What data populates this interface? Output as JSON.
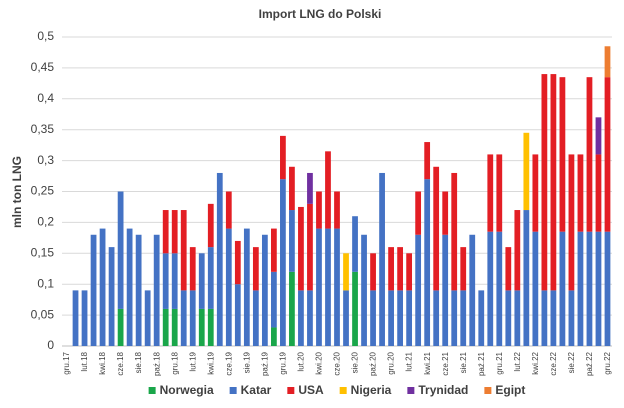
{
  "chart_data": {
    "type": "stacked-bar",
    "title": "Import LNG do Polski",
    "y_label": "mln ton LNG",
    "categories": [
      "gru.17",
      null,
      "lut.18",
      null,
      "kwi.18",
      null,
      "cze.18",
      null,
      "sie.18",
      null,
      "paź.18",
      null,
      "gru.18",
      null,
      "lut.19",
      null,
      "kwi.19",
      null,
      "cze.19",
      null,
      "sie.19",
      null,
      "paź.19",
      null,
      "gru.19",
      null,
      "lut.20",
      null,
      "kwi.20",
      null,
      "cze.20",
      null,
      "sie.20",
      null,
      "paź.20",
      null,
      "gru.20",
      null,
      "lut.21",
      null,
      "kwi.21",
      null,
      "cze.21",
      null,
      "sie.21",
      null,
      "paź.21",
      null,
      "gru.21",
      null,
      "lut.22",
      null,
      "kwi.22",
      null,
      "cze.22",
      null,
      "sie.22",
      null,
      "paź.22",
      null,
      "gru.22"
    ],
    "series": [
      {
        "name": "Norwegia",
        "color": "#1aa64a",
        "values": [
          null,
          null,
          null,
          null,
          null,
          null,
          0.06,
          null,
          null,
          null,
          null,
          0.06,
          0.06,
          null,
          null,
          0.06,
          0.06,
          null,
          null,
          null,
          null,
          null,
          null,
          0.03,
          null,
          0.12,
          null,
          null,
          null,
          null,
          null,
          null,
          0.12,
          null,
          null,
          null,
          null,
          null,
          null,
          null,
          null,
          null,
          null,
          null,
          null,
          null,
          null,
          null,
          null,
          null,
          null,
          null,
          null,
          null,
          null,
          null,
          null,
          null,
          null,
          null,
          null
        ]
      },
      {
        "name": "Katar",
        "color": "#4472c4",
        "values": [
          null,
          0.09,
          0.09,
          0.18,
          0.19,
          0.16,
          0.19,
          0.19,
          0.18,
          0.09,
          0.18,
          0.09,
          0.09,
          0.09,
          0.09,
          0.09,
          0.1,
          0.28,
          0.19,
          0.1,
          0.19,
          0.09,
          0.18,
          0.09,
          0.27,
          0.1,
          0.09,
          0.09,
          0.19,
          0.19,
          0.19,
          0.09,
          0.09,
          0.18,
          0.09,
          0.28,
          0.09,
          0.09,
          0.09,
          0.18,
          0.27,
          0.09,
          0.18,
          0.09,
          0.09,
          0.18,
          0.09,
          0.185,
          0.185,
          0.09,
          0.09,
          0.22,
          0.185,
          0.09,
          0.09,
          0.185,
          0.09,
          0.185,
          0.185,
          0.185,
          0.185
        ]
      },
      {
        "name": "USA",
        "color": "#e31e24",
        "values": [
          null,
          null,
          null,
          null,
          null,
          null,
          null,
          null,
          null,
          null,
          null,
          0.07,
          0.07,
          0.13,
          0.07,
          null,
          0.07,
          null,
          0.06,
          0.07,
          null,
          0.07,
          null,
          0.07,
          0.07,
          0.07,
          0.135,
          0.14,
          0.06,
          0.125,
          0.06,
          null,
          null,
          null,
          0.06,
          null,
          0.07,
          0.07,
          0.06,
          0.07,
          0.06,
          0.2,
          0.07,
          0.19,
          0.07,
          null,
          null,
          0.125,
          0.125,
          0.07,
          0.13,
          null,
          0.125,
          0.35,
          0.35,
          0.25,
          0.22,
          0.125,
          0.25,
          0.125,
          0.25
        ]
      },
      {
        "name": "Nigeria",
        "color": "#ffc000",
        "values": [
          null,
          null,
          null,
          null,
          null,
          null,
          null,
          null,
          null,
          null,
          null,
          null,
          null,
          null,
          null,
          null,
          null,
          null,
          null,
          null,
          null,
          null,
          null,
          null,
          null,
          null,
          null,
          null,
          null,
          null,
          null,
          0.06,
          null,
          null,
          null,
          null,
          null,
          null,
          null,
          null,
          null,
          null,
          null,
          null,
          null,
          null,
          null,
          null,
          null,
          null,
          null,
          0.125,
          null,
          null,
          null,
          null,
          null,
          null,
          null,
          null,
          null
        ]
      },
      {
        "name": "Trynidad",
        "color": "#7030a0",
        "values": [
          null,
          null,
          null,
          null,
          null,
          null,
          null,
          null,
          null,
          null,
          null,
          null,
          null,
          null,
          null,
          null,
          null,
          null,
          null,
          null,
          null,
          null,
          null,
          null,
          null,
          null,
          null,
          0.05,
          null,
          null,
          null,
          null,
          null,
          null,
          null,
          null,
          null,
          null,
          null,
          null,
          null,
          null,
          null,
          null,
          null,
          null,
          null,
          null,
          null,
          null,
          null,
          null,
          null,
          null,
          null,
          null,
          null,
          null,
          null,
          0.06,
          null
        ]
      },
      {
        "name": "Egipt",
        "color": "#ed7d31",
        "values": [
          null,
          null,
          null,
          null,
          null,
          null,
          null,
          null,
          null,
          null,
          null,
          null,
          null,
          null,
          null,
          null,
          null,
          null,
          null,
          null,
          null,
          null,
          null,
          null,
          null,
          null,
          null,
          null,
          null,
          null,
          null,
          null,
          null,
          null,
          null,
          null,
          null,
          null,
          null,
          null,
          null,
          null,
          null,
          null,
          null,
          null,
          null,
          null,
          null,
          null,
          null,
          null,
          null,
          null,
          null,
          null,
          null,
          null,
          null,
          null,
          0.05
        ]
      }
    ],
    "ylim": [
      0,
      0.5
    ],
    "yticks": [
      0,
      {
        "value": 0.05,
        "label": "0,05"
      },
      {
        "value": 0.1,
        "label": "0,1"
      },
      {
        "value": 0.15,
        "label": "0,15"
      },
      {
        "value": 0.2,
        "label": "0,2"
      },
      {
        "value": 0.25,
        "label": "0,25"
      },
      {
        "value": 0.3,
        "label": "0,3"
      },
      {
        "value": 0.35,
        "label": "0,35"
      },
      {
        "value": 0.4,
        "label": "0,4"
      },
      {
        "value": 0.45,
        "label": "0,45"
      },
      {
        "value": 0.5,
        "label": "0,5"
      }
    ],
    "grid": true,
    "legend": "bottom"
  }
}
